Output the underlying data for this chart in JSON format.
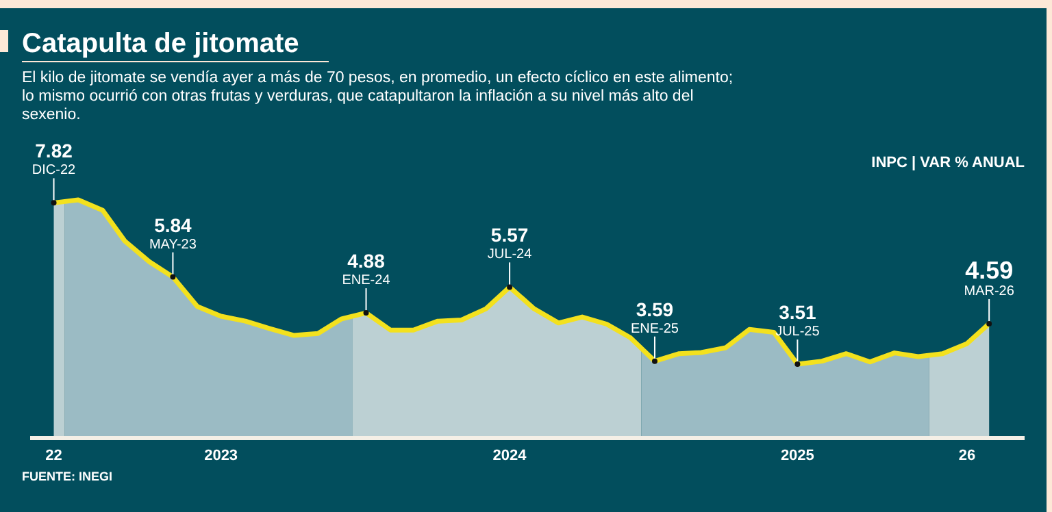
{
  "chart_data": {
    "type": "area",
    "title": "Catapulta de jitomate",
    "subtitle": "El kilo de jitomate se vendía ayer a más de 70 pesos, en promedio, un efecto cíclico en este alimento; lo mismo ocurrió con otras frutas y verduras, que catapultaron la inflación a su nivel más alto del sexenio.",
    "ylabel": "INPC | VAR % ANUAL",
    "x": [
      "2022-12",
      "2023-01",
      "2023-02",
      "2023-03",
      "2023-04",
      "2023-05",
      "2023-06",
      "2023-07",
      "2023-08",
      "2023-09",
      "2023-10",
      "2023-11",
      "2023-12",
      "2024-01",
      "2024-02",
      "2024-03",
      "2024-04",
      "2024-05",
      "2024-06",
      "2024-07",
      "2024-08",
      "2024-09",
      "2024-10",
      "2024-11",
      "2024-12",
      "2025-01",
      "2025-02",
      "2025-03",
      "2025-04",
      "2025-05",
      "2025-06",
      "2025-07",
      "2025-08",
      "2025-09",
      "2025-10",
      "2025-11",
      "2025-12",
      "2026-01",
      "2026-02",
      "2026-03"
    ],
    "series": [
      {
        "color": "#f3e11e",
        "values": [
          7.82,
          7.9,
          7.62,
          6.8,
          6.25,
          5.84,
          5.05,
          4.79,
          4.66,
          4.46,
          4.28,
          4.33,
          4.72,
          4.88,
          4.42,
          4.42,
          4.66,
          4.69,
          4.99,
          5.57,
          4.99,
          4.61,
          4.77,
          4.58,
          4.22,
          3.59,
          3.79,
          3.82,
          3.95,
          4.44,
          4.36,
          3.51,
          3.59,
          3.79,
          3.57,
          3.81,
          3.71,
          3.79,
          4.06,
          4.59
        ],
        "value_labels": [
          "7.82",
          null,
          null,
          null,
          null,
          "5.84",
          null,
          null,
          null,
          null,
          null,
          null,
          null,
          "4.88",
          null,
          null,
          null,
          null,
          null,
          "5.57",
          null,
          null,
          null,
          null,
          null,
          "3.59",
          null,
          null,
          null,
          null,
          null,
          "3.51",
          null,
          null,
          null,
          null,
          null,
          null,
          null,
          "4.59"
        ]
      }
    ],
    "xlim": [
      "2022-11-01",
      "2026-04-15"
    ],
    "xticks": [
      {
        "value": "2022-12",
        "label": "22"
      },
      {
        "value": "2023-07",
        "label": "2023"
      },
      {
        "value": "2024-07",
        "label": "2024"
      },
      {
        "value": "2025-07",
        "label": "2025"
      },
      {
        "value": "2026-02",
        "label": "26"
      }
    ],
    "tick_labels": "x",
    "bands": [
      {
        "axis": "x",
        "from": "2022-11-15",
        "to": "2022-12-15",
        "color": "#b7cdd0"
      },
      {
        "axis": "x",
        "from": "2022-12-15",
        "to": "2023-12-15",
        "color": "#93b6bf"
      },
      {
        "axis": "x",
        "from": "2023-12-15",
        "to": "2024-12-15",
        "color": "#b7cdd0"
      },
      {
        "axis": "x",
        "from": "2024-12-15",
        "to": "2025-12-15",
        "color": "#93b6bf"
      },
      {
        "axis": "x",
        "from": "2025-12-15",
        "to": "2026-04-15",
        "color": "#b7cdd0"
      }
    ],
    "annotations": [
      {
        "text": "DIC-22",
        "x": "2022-12",
        "y": 7.82
      },
      {
        "text": "MAY-23",
        "x": "2023-05",
        "y": 5.84
      },
      {
        "text": "ENE-24",
        "x": "2024-01",
        "y": 4.88
      },
      {
        "text": "JUL-24",
        "x": "2024-07",
        "y": 5.57
      },
      {
        "text": "ENE-25",
        "x": "2025-01",
        "y": 3.59
      },
      {
        "text": "JUL-25",
        "x": "2025-07",
        "y": 3.51
      },
      {
        "text": "MAR-26",
        "x": "2026-03",
        "y": 4.59
      },
      "FUENTE: INEGI"
    ]
  }
}
